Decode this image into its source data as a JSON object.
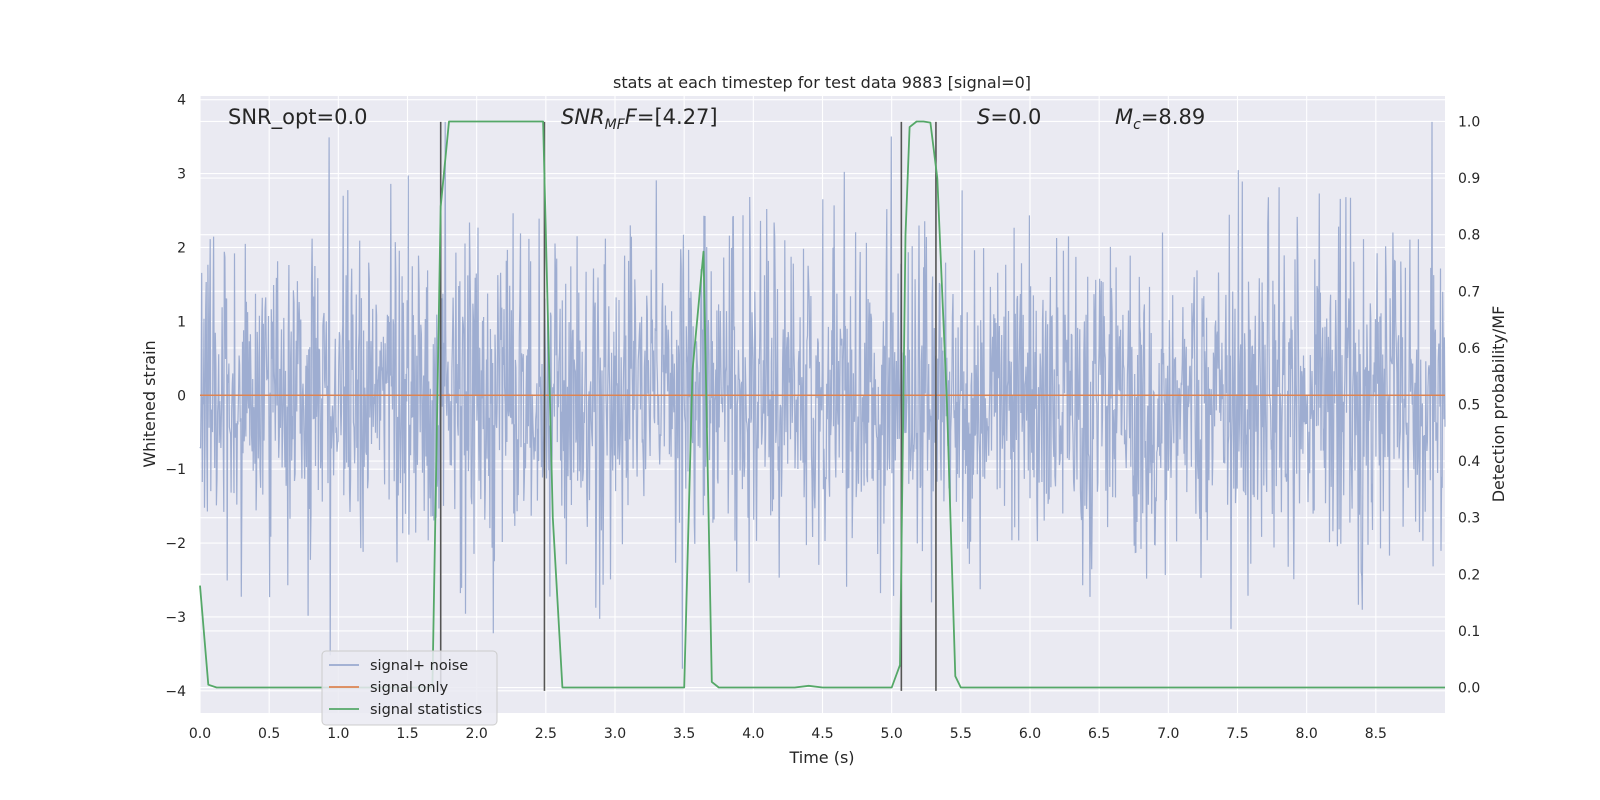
{
  "chart_data": {
    "type": "line",
    "title": "stats at each timestep for test data 9883 [signal=0]",
    "xlabel": "Time (s)",
    "ylabel": "Whitened strain",
    "y2label": "Detection probability/MF",
    "xlim": [
      0,
      9.0
    ],
    "ylim": [
      -4.3,
      4.05
    ],
    "y2lim": [
      -0.045,
      1.045
    ],
    "xticks": [
      0.0,
      0.5,
      1.0,
      1.5,
      2.0,
      2.5,
      3.0,
      3.5,
      4.0,
      4.5,
      5.0,
      5.5,
      6.0,
      6.5,
      7.0,
      7.5,
      8.0,
      8.5
    ],
    "xtick_labels": [
      "0.0",
      "0.5",
      "1.0",
      "1.5",
      "2.0",
      "2.5",
      "3.0",
      "3.5",
      "4.0",
      "4.5",
      "5.0",
      "5.5",
      "6.0",
      "6.5",
      "7.0",
      "7.5",
      "8.0",
      "8.5"
    ],
    "yticks": [
      -4,
      -3,
      -2,
      -1,
      0,
      1,
      2,
      3,
      4
    ],
    "ytick_labels": [
      "−4",
      "−3",
      "−2",
      "−1",
      "0",
      "1",
      "2",
      "3",
      "4"
    ],
    "y2ticks": [
      0.0,
      0.1,
      0.2,
      0.3,
      0.4,
      0.5,
      0.6,
      0.7,
      0.8,
      0.9,
      1.0
    ],
    "y2tick_labels": [
      "0.0",
      "0.1",
      "0.2",
      "0.3",
      "0.4",
      "0.5",
      "0.6",
      "0.7",
      "0.8",
      "0.9",
      "1.0"
    ],
    "grid": true,
    "legend_position": "lower-left",
    "annotations": {
      "snr_opt": "SNR_opt=0.0",
      "snr_mf_main": "SNR",
      "snr_mf_sub": "MF",
      "snr_mf_value": "=[4.27]",
      "s_main": "S",
      "s_value": "=0.0",
      "mc_main": "M",
      "mc_sub": "c",
      "mc_value": "=8.89"
    },
    "series": [
      {
        "name": "signal+ noise",
        "color": "#9aaacf",
        "axis": "left",
        "description": "whitened strain noise, dense fluctuations mostly within ±2, peaks near ±3.7",
        "noise": {
          "n_samples": 2200,
          "core_std": 1.0,
          "max_abs": 3.7
        }
      },
      {
        "name": "signal only",
        "color": "#dd8452",
        "axis": "left",
        "x": [
          0.0,
          9.0
        ],
        "y": [
          0.0,
          0.0
        ]
      },
      {
        "name": "signal statistics",
        "color": "#55a868",
        "axis": "right",
        "x": [
          0.0,
          0.06,
          0.12,
          0.5,
          1.0,
          1.5,
          1.68,
          1.74,
          1.8,
          2.0,
          2.3,
          2.48,
          2.55,
          2.62,
          3.0,
          3.5,
          3.56,
          3.64,
          3.7,
          3.75,
          4.0,
          4.3,
          4.4,
          4.5,
          5.0,
          5.06,
          5.1,
          5.13,
          5.18,
          5.23,
          5.28,
          5.33,
          5.4,
          5.46,
          5.5,
          6.0,
          7.0,
          8.0,
          9.0
        ],
        "y": [
          0.18,
          0.005,
          0.0,
          0.0,
          0.0,
          0.0,
          0.0,
          0.85,
          1.0,
          1.0,
          1.0,
          1.0,
          0.3,
          0.0,
          0.0,
          0.0,
          0.56,
          0.77,
          0.01,
          0.0,
          0.0,
          0.0,
          0.003,
          0.0,
          0.0,
          0.04,
          0.8,
          0.99,
          1.0,
          1.0,
          0.998,
          0.9,
          0.5,
          0.02,
          0.0,
          0.0,
          0.0,
          0.0,
          0.0
        ]
      }
    ],
    "vlines": {
      "color": "#555555",
      "x": [
        1.74,
        2.49,
        5.07,
        5.32
      ],
      "y_top": 3.7,
      "y_bottom": -4.0
    }
  }
}
